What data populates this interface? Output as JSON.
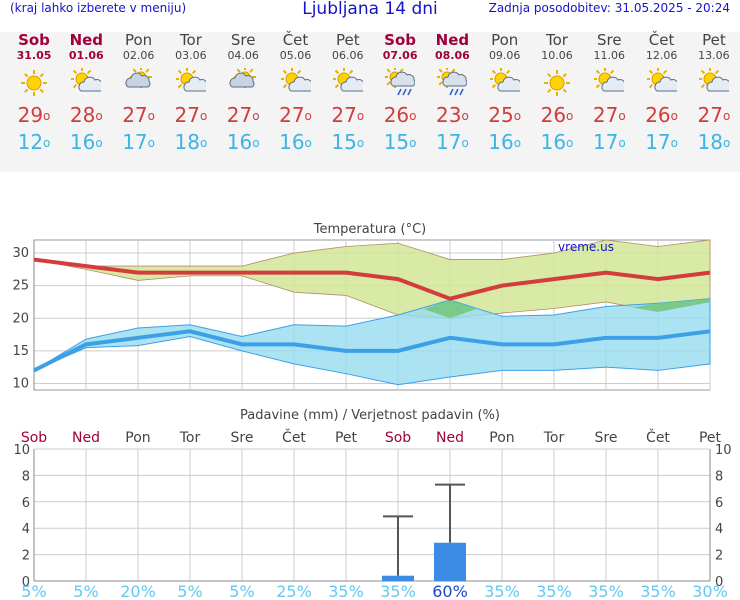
{
  "header": {
    "hint": "(kraj lahko izberete v meniju)",
    "title": "Ljubljana 14 dni",
    "updated": "Zadnja posodobitev: 31.05.2025 - 20:24"
  },
  "days": [
    {
      "name": "Sob",
      "date": "31.05",
      "weekend": true,
      "icon": "sun-icon",
      "max": "29",
      "min": "12"
    },
    {
      "name": "Ned",
      "date": "01.06",
      "weekend": true,
      "icon": "sun-cloud-icon",
      "max": "28",
      "min": "16"
    },
    {
      "name": "Pon",
      "date": "02.06",
      "weekend": false,
      "icon": "cloud-sun-icon",
      "max": "27",
      "min": "17"
    },
    {
      "name": "Tor",
      "date": "03.06",
      "weekend": false,
      "icon": "sun-cloud-icon",
      "max": "27",
      "min": "18"
    },
    {
      "name": "Sre",
      "date": "04.06",
      "weekend": false,
      "icon": "cloud-sun-icon",
      "max": "27",
      "min": "16"
    },
    {
      "name": "Čet",
      "date": "05.06",
      "weekend": false,
      "icon": "sun-cloud-icon",
      "max": "27",
      "min": "16"
    },
    {
      "name": "Pet",
      "date": "06.06",
      "weekend": false,
      "icon": "sun-cloud-icon",
      "max": "27",
      "min": "15"
    },
    {
      "name": "Sob",
      "date": "07.06",
      "weekend": true,
      "icon": "sun-cloud-rain-icon",
      "max": "26",
      "min": "15"
    },
    {
      "name": "Ned",
      "date": "08.06",
      "weekend": true,
      "icon": "sun-cloud-rain-icon",
      "max": "23",
      "min": "17"
    },
    {
      "name": "Pon",
      "date": "09.06",
      "weekend": false,
      "icon": "sun-cloud-icon",
      "max": "25",
      "min": "16"
    },
    {
      "name": "Tor",
      "date": "10.06",
      "weekend": false,
      "icon": "sun-icon",
      "max": "26",
      "min": "16"
    },
    {
      "name": "Sre",
      "date": "11.06",
      "weekend": false,
      "icon": "sun-cloud-icon",
      "max": "27",
      "min": "17"
    },
    {
      "name": "Čet",
      "date": "12.06",
      "weekend": false,
      "icon": "sun-cloud-icon",
      "max": "26",
      "min": "17"
    },
    {
      "name": "Pet",
      "date": "13.06",
      "weekend": false,
      "icon": "sun-cloud-icon",
      "max": "27",
      "min": "18"
    }
  ],
  "chart_data": [
    {
      "type": "line",
      "title": "Temperatura (°C)",
      "watermark": "vreme.us",
      "ylim": [
        9,
        32
      ],
      "yticks": [
        10,
        15,
        20,
        25,
        30
      ],
      "grid": true,
      "colors": {
        "max": "#d23c3c",
        "min": "#3ca0e6",
        "max_band": "#d2e696",
        "min_band": "#96dcf0",
        "overlap": "#78c882"
      },
      "series": [
        {
          "key": "max",
          "values": [
            29,
            28,
            27,
            27,
            27,
            27,
            27,
            26,
            23,
            25,
            26,
            27,
            26,
            27
          ]
        },
        {
          "key": "max_upper",
          "values": [
            29,
            28,
            28,
            28,
            28,
            30,
            31,
            31.5,
            29,
            29,
            30,
            32,
            31,
            32
          ]
        },
        {
          "key": "max_lower",
          "values": [
            29,
            27.5,
            25.8,
            26.5,
            26.5,
            24,
            23.5,
            20.5,
            20,
            20.8,
            21.5,
            22.5,
            21,
            22.5
          ]
        },
        {
          "key": "min",
          "values": [
            12,
            16,
            17,
            18,
            16,
            16,
            15,
            15,
            17,
            16,
            16,
            17,
            17,
            18
          ]
        },
        {
          "key": "min_upper",
          "values": [
            12,
            16.8,
            18.5,
            19,
            17.2,
            19,
            18.8,
            20.5,
            22.8,
            20.3,
            20.5,
            21.8,
            22.3,
            23
          ]
        },
        {
          "key": "min_lower",
          "values": [
            12,
            15.5,
            15.8,
            17.2,
            15,
            13,
            11.5,
            9.8,
            11,
            12,
            12,
            12.5,
            12,
            13
          ]
        }
      ]
    },
    {
      "type": "bar",
      "title": "Padavine (mm) / Verjetnost padavin (%)",
      "ylim": [
        0,
        10
      ],
      "yticks": [
        0,
        2,
        4,
        6,
        8,
        10
      ],
      "grid": true,
      "colors": {
        "bar": "#3c8ce6",
        "whisker": "#555555",
        "prob": "#64c8f0",
        "prob_high": "#1e46c8"
      },
      "categories": [
        "Sob",
        "Ned",
        "Pon",
        "Tor",
        "Sre",
        "Čet",
        "Pet",
        "Sob",
        "Ned",
        "Pon",
        "Tor",
        "Sre",
        "Čet",
        "Pet"
      ],
      "weekend": [
        true,
        true,
        false,
        false,
        false,
        false,
        false,
        true,
        true,
        false,
        false,
        false,
        false,
        false
      ],
      "values": [
        0,
        0,
        0,
        0,
        0,
        0,
        0,
        0.4,
        2.9,
        0,
        0,
        0,
        0,
        0
      ],
      "upper": [
        null,
        null,
        null,
        null,
        null,
        null,
        null,
        4.9,
        7.3,
        null,
        null,
        null,
        null,
        null
      ],
      "probability": [
        "5%",
        "5%",
        "20%",
        "5%",
        "5%",
        "25%",
        "35%",
        "35%",
        "60%",
        "35%",
        "35%",
        "35%",
        "35%",
        "30%"
      ]
    }
  ]
}
